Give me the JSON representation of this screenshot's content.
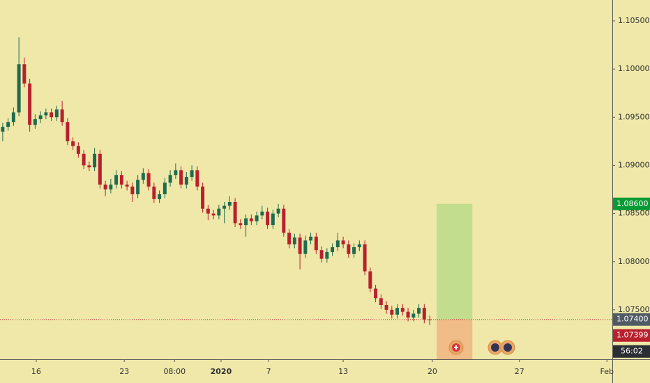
{
  "chart_data": {
    "type": "candlestick",
    "up_color": "#1e6b50",
    "down_color": "#b8202e",
    "background": "#efe8a9",
    "open": [
      1.0935,
      1.094,
      1.0945,
      1.0955,
      1.1005,
      1.0985,
      1.0942,
      1.0948,
      1.0952,
      1.0955,
      1.095,
      1.0958,
      1.0945,
      1.0925,
      1.092,
      1.0912,
      1.09,
      1.0898,
      1.0912,
      1.088,
      1.0875,
      1.088,
      1.089,
      1.088,
      1.0878,
      1.087,
      1.0885,
      1.0892,
      1.0878,
      1.0865,
      1.087,
      1.0882,
      1.089,
      1.0895,
      1.088,
      1.0888,
      1.0895,
      1.0878,
      1.0855,
      1.085,
      1.0848,
      1.0855,
      1.0858,
      1.0862,
      1.084,
      1.0838,
      1.0845,
      1.0842,
      1.0848,
      1.0852,
      1.0838,
      1.085,
      1.0855,
      1.083,
      1.0818,
      1.0825,
      1.0808,
      1.0822,
      1.0826,
      1.0812,
      1.0803,
      1.081,
      1.0815,
      1.0822,
      1.0818,
      1.0808,
      1.0815,
      1.0818,
      1.079,
      1.0772,
      1.0762,
      1.0755,
      1.075,
      1.0745,
      1.0752,
      1.0748,
      1.0742,
      1.0746,
      1.0752,
      1.074
    ],
    "high": [
      1.0944,
      1.0949,
      1.096,
      1.1033,
      1.1012,
      1.099,
      1.0953,
      1.0956,
      1.0959,
      1.0959,
      1.0962,
      1.0967,
      1.0949,
      1.0929,
      1.0924,
      1.0916,
      1.0904,
      1.0918,
      1.0916,
      1.0884,
      1.0886,
      1.0895,
      1.0894,
      1.0884,
      1.0882,
      1.089,
      1.0897,
      1.0896,
      1.0882,
      1.0874,
      1.0887,
      1.0895,
      1.0902,
      1.0899,
      1.0893,
      1.09,
      1.0899,
      1.0882,
      1.0859,
      1.0854,
      1.0859,
      1.0862,
      1.0868,
      1.0866,
      1.0844,
      1.0849,
      1.0849,
      1.0852,
      1.0858,
      1.0856,
      1.0854,
      1.086,
      1.0859,
      1.0834,
      1.0829,
      1.0829,
      1.0827,
      1.083,
      1.083,
      1.0816,
      1.0814,
      1.0819,
      1.083,
      1.0826,
      1.0822,
      1.0819,
      1.0822,
      1.0822,
      1.0794,
      1.0776,
      1.0766,
      1.0759,
      1.0754,
      1.0756,
      1.0756,
      1.0752,
      1.075,
      1.0756,
      1.0756,
      1.0744
    ],
    "low": [
      1.0925,
      1.0936,
      1.0941,
      1.0951,
      1.0981,
      1.0935,
      1.0938,
      1.0944,
      1.0948,
      1.0946,
      1.0946,
      1.0941,
      1.0921,
      1.0916,
      1.0908,
      1.0896,
      1.0894,
      1.0894,
      1.0876,
      1.0868,
      1.0871,
      1.0876,
      1.0876,
      1.0874,
      1.0862,
      1.0866,
      1.0881,
      1.0874,
      1.0861,
      1.0861,
      1.0866,
      1.0878,
      1.0886,
      1.0876,
      1.0876,
      1.0884,
      1.0874,
      1.0851,
      1.0843,
      1.0844,
      1.0844,
      1.084,
      1.0854,
      1.0836,
      1.0834,
      1.0826,
      1.0838,
      1.0838,
      1.0844,
      1.0834,
      1.0834,
      1.0846,
      1.0826,
      1.0814,
      1.0814,
      1.0792,
      1.0804,
      1.0818,
      1.0808,
      1.0799,
      1.0799,
      1.0806,
      1.0811,
      1.0814,
      1.0804,
      1.0804,
      1.0811,
      1.0786,
      1.0768,
      1.0758,
      1.0751,
      1.0746,
      1.0741,
      1.0741,
      1.0744,
      1.0738,
      1.0738,
      1.0742,
      1.0736,
      1.0734
    ],
    "close": [
      1.094,
      1.0945,
      1.0955,
      1.1005,
      1.0985,
      1.0942,
      1.0948,
      1.0952,
      1.0955,
      1.095,
      1.0958,
      1.0945,
      1.0925,
      1.092,
      1.0912,
      1.09,
      1.0898,
      1.0912,
      1.088,
      1.0875,
      1.088,
      1.089,
      1.088,
      1.0878,
      1.087,
      1.0885,
      1.0892,
      1.0878,
      1.0865,
      1.087,
      1.0882,
      1.089,
      1.0895,
      1.088,
      1.0888,
      1.0895,
      1.0878,
      1.0855,
      1.085,
      1.0848,
      1.0855,
      1.0858,
      1.0862,
      1.084,
      1.0838,
      1.0845,
      1.0842,
      1.0848,
      1.0852,
      1.0838,
      1.085,
      1.0855,
      1.083,
      1.0818,
      1.0825,
      1.0808,
      1.0822,
      1.0826,
      1.0812,
      1.0803,
      1.081,
      1.0815,
      1.0822,
      1.0818,
      1.0808,
      1.0815,
      1.0818,
      1.079,
      1.0772,
      1.0762,
      1.0755,
      1.075,
      1.0745,
      1.0752,
      1.0748,
      1.0742,
      1.0746,
      1.0752,
      1.074,
      1.07399
    ],
    "xlim": [
      -0.5,
      112.8
    ],
    "xticks": [
      {
        "value": 6.2,
        "label": "16"
      },
      {
        "value": 22.5,
        "label": "23"
      },
      {
        "value": 31.8,
        "label": "08:00"
      },
      {
        "value": 40.4,
        "label": "2020"
      },
      {
        "value": 49.2,
        "label": "7"
      },
      {
        "value": 63,
        "label": "13"
      },
      {
        "value": 79.5,
        "label": "20"
      },
      {
        "value": 95.6,
        "label": "27"
      },
      {
        "value": 111.8,
        "label": "Feb"
      }
    ],
    "ylim": [
      1.06986,
      1.10717
    ],
    "yticks": [
      {
        "value": 1.105,
        "label": "1.10500"
      },
      {
        "value": 1.1,
        "label": "1.10000"
      },
      {
        "value": 1.095,
        "label": "1.09500"
      },
      {
        "value": 1.09,
        "label": "1.09000"
      },
      {
        "value": 1.085,
        "label": "1.08500"
      },
      {
        "value": 1.08,
        "label": "1.08000"
      },
      {
        "value": 1.075,
        "label": "1.07500"
      }
    ],
    "position": {
      "x": [
        80.3,
        86.9
      ],
      "target": {
        "value": 1.086,
        "label": "1.08600"
      },
      "entry": {
        "value": 1.074,
        "label": "1.07400"
      },
      "stop": 1.06986,
      "target_color": "#c2dd8d",
      "stop_color": "#f0bc88"
    },
    "last_price": {
      "value": 1.07399,
      "label": "1.07399"
    },
    "countdown": "56:02"
  }
}
